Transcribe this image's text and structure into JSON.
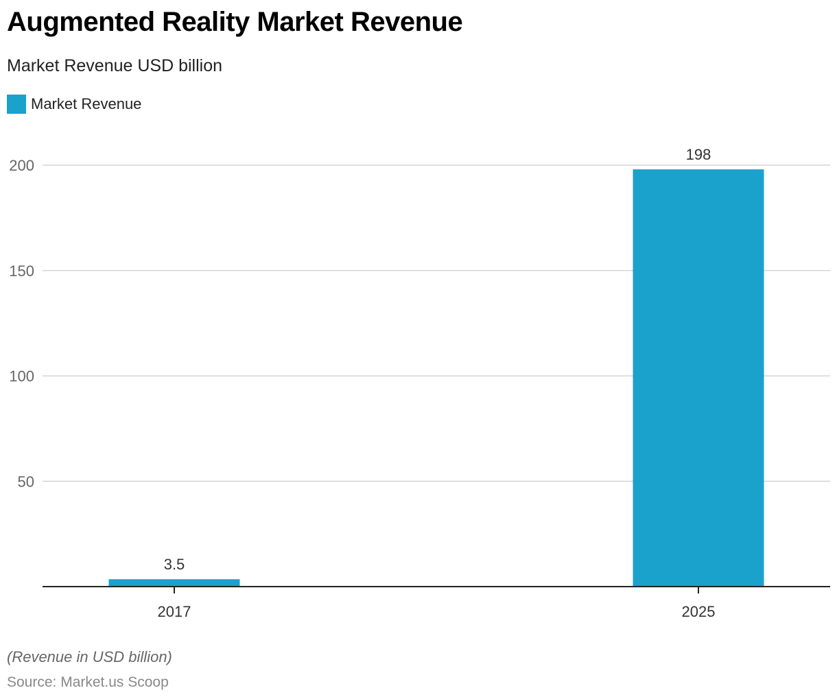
{
  "title": "Augmented Reality Market Revenue",
  "subtitle": "Market Revenue USD billion",
  "legend": [
    {
      "label": "Market Revenue",
      "color": "#1aa1cc"
    }
  ],
  "note": "(Revenue in USD billion)",
  "source": "Source: Market.us Scoop",
  "chart_data": {
    "type": "bar",
    "title": "Augmented Reality Market Revenue",
    "subtitle": "Market Revenue USD billion",
    "xlabel": "",
    "ylabel": "",
    "categories": [
      "2017",
      "2025"
    ],
    "series": [
      {
        "name": "Market Revenue",
        "values": [
          3.5,
          198
        ],
        "color": "#1aa1cc"
      }
    ],
    "data_labels": [
      "3.5",
      "198"
    ],
    "ylim": [
      0,
      200
    ],
    "yticks": [
      50,
      100,
      150,
      200
    ],
    "grid": true,
    "legend_position": "top-left"
  }
}
